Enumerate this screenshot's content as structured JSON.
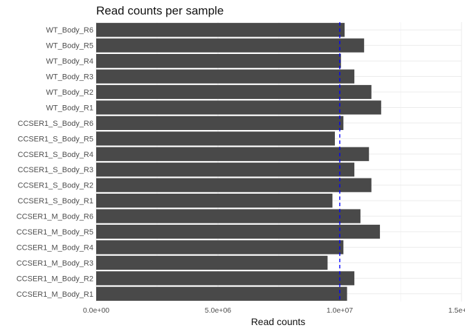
{
  "chart_data": {
    "type": "bar",
    "orientation": "horizontal",
    "title": "Read counts per sample",
    "xlabel": "Read counts",
    "ylabel": "",
    "categories": [
      "WT_Body_R6",
      "WT_Body_R5",
      "WT_Body_R4",
      "WT_Body_R3",
      "WT_Body_R2",
      "WT_Body_R1",
      "CCSER1_S_Body_R6",
      "CCSER1_S_Body_R5",
      "CCSER1_S_Body_R4",
      "CCSER1_S_Body_R3",
      "CCSER1_S_Body_R2",
      "CCSER1_S_Body_R1",
      "CCSER1_M_Body_R6",
      "CCSER1_M_Body_R5",
      "CCSER1_M_Body_R4",
      "CCSER1_M_Body_R3",
      "CCSER1_M_Body_R2",
      "CCSER1_M_Body_R1"
    ],
    "values": [
      10200000,
      11000000,
      10050000,
      10600000,
      11300000,
      11700000,
      10150000,
      9800000,
      11200000,
      10600000,
      11300000,
      9700000,
      10850000,
      11650000,
      10150000,
      9500000,
      10600000,
      10300000
    ],
    "xlim": [
      0,
      15000000
    ],
    "xticks": [
      0,
      5000000,
      10000000,
      15000000
    ],
    "xtick_labels": [
      "0.0e+00",
      "5.0e+06",
      "1.0e+07",
      "1.5e+07"
    ],
    "reference_line": {
      "value": 10000000,
      "style": "dashed",
      "color": "#0000ff"
    },
    "bar_color": "#494949",
    "grid": true,
    "legend": "none"
  }
}
